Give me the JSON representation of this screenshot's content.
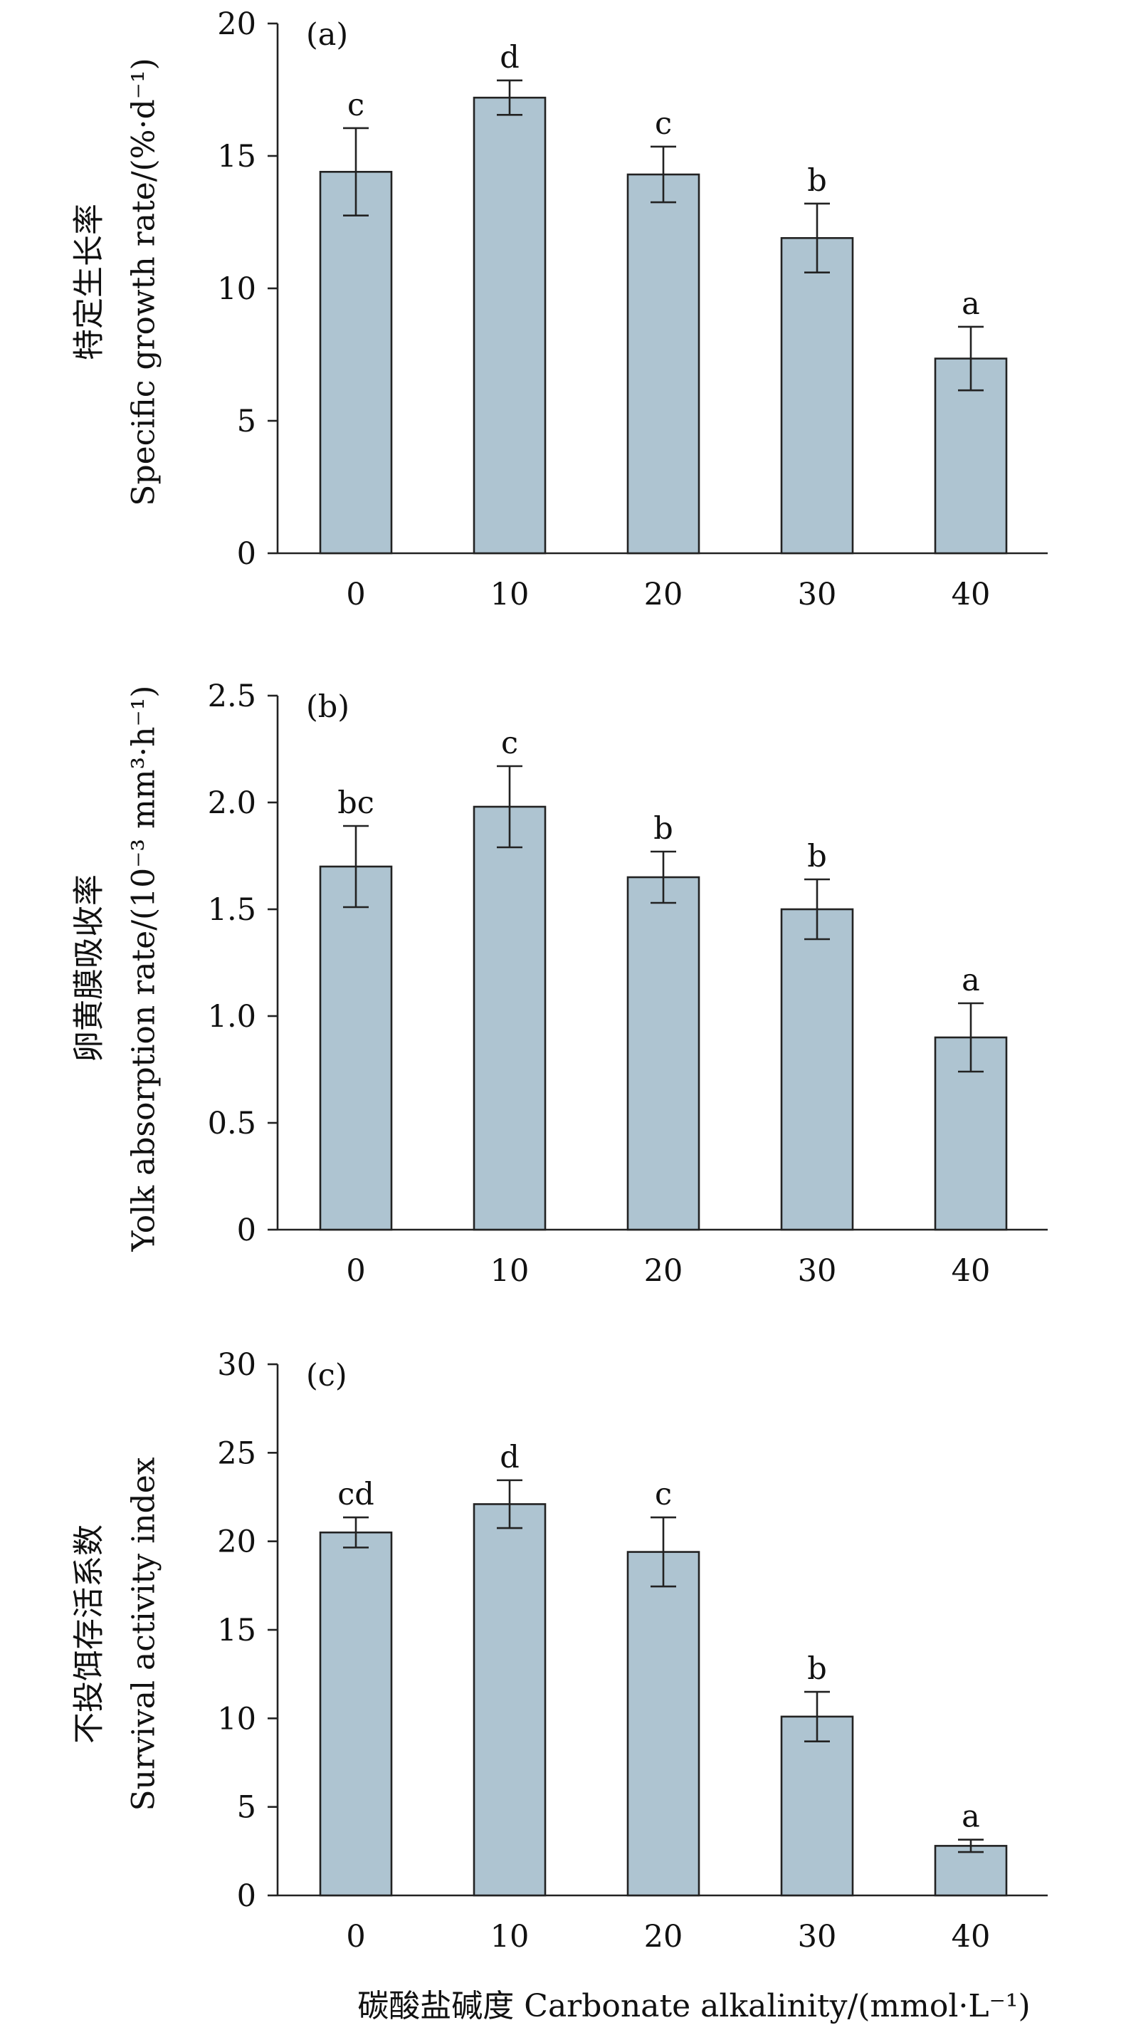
{
  "x_axis": {
    "label": "碳酸盐碱度 Carbonate alkalinity/(mmol·L⁻¹)"
  },
  "chart_data": [
    {
      "type": "bar",
      "panel_label": "(a)",
      "categories": [
        "0",
        "10",
        "20",
        "30",
        "40"
      ],
      "values": [
        14.4,
        17.2,
        14.3,
        11.9,
        7.35
      ],
      "errors": [
        1.65,
        0.65,
        1.05,
        1.3,
        1.2
      ],
      "significance": [
        "c",
        "d",
        "c",
        "b",
        "a"
      ],
      "ylabel_zh": "特定生长率",
      "ylabel_en": "Specific growth rate/(%·d⁻¹)",
      "ylim": [
        0,
        20
      ],
      "yticks": [
        0,
        5,
        10,
        15,
        20
      ],
      "ytick_labels": [
        "0",
        "5",
        "10",
        "15",
        "20"
      ],
      "bar_color": "#aec4d1"
    },
    {
      "type": "bar",
      "panel_label": "(b)",
      "categories": [
        "0",
        "10",
        "20",
        "30",
        "40"
      ],
      "values": [
        1.7,
        1.98,
        1.65,
        1.5,
        0.9
      ],
      "errors": [
        0.19,
        0.19,
        0.12,
        0.14,
        0.16
      ],
      "significance": [
        "bc",
        "c",
        "b",
        "b",
        "a"
      ],
      "ylabel_zh": "卵黄膜吸收率",
      "ylabel_en": "Yolk absorption rate/(10⁻³ mm³·h⁻¹)",
      "ylim": [
        0,
        2.5
      ],
      "yticks": [
        0,
        0.5,
        1.0,
        1.5,
        2.0,
        2.5
      ],
      "ytick_labels": [
        "0",
        "0.5",
        "1.0",
        "1.5",
        "2.0",
        "2.5"
      ],
      "bar_color": "#aec4d1"
    },
    {
      "type": "bar",
      "panel_label": "(c)",
      "categories": [
        "0",
        "10",
        "20",
        "30",
        "40"
      ],
      "values": [
        20.5,
        22.1,
        19.4,
        10.1,
        2.8
      ],
      "errors": [
        0.85,
        1.35,
        1.95,
        1.4,
        0.35
      ],
      "significance": [
        "cd",
        "d",
        "c",
        "b",
        "a"
      ],
      "ylabel_zh": "不投饵存活系数",
      "ylabel_en": "Survival activity index",
      "ylim": [
        0,
        30
      ],
      "yticks": [
        0,
        5,
        10,
        15,
        20,
        25,
        30
      ],
      "ytick_labels": [
        "0",
        "5",
        "10",
        "15",
        "20",
        "25",
        "30"
      ],
      "bar_color": "#aec4d1"
    }
  ]
}
